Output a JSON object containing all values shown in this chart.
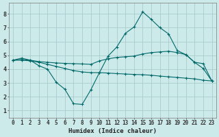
{
  "xlabel": "Humidex (Indice chaleur)",
  "background_color": "#cceaea",
  "grid_color": "#aacccc",
  "line_color": "#006868",
  "xlim": [
    -0.5,
    23.5
  ],
  "ylim": [
    0.5,
    8.8
  ],
  "xticks": [
    0,
    1,
    2,
    3,
    4,
    5,
    6,
    7,
    8,
    9,
    10,
    11,
    12,
    13,
    14,
    15,
    16,
    17,
    18,
    19,
    20,
    21,
    22,
    23
  ],
  "yticks": [
    1,
    2,
    3,
    4,
    5,
    6,
    7,
    8
  ],
  "line1_x": [
    0,
    1,
    2,
    3,
    4,
    5,
    6,
    7,
    8,
    9,
    10,
    11,
    12,
    13,
    14,
    15,
    16,
    17,
    18,
    19,
    20,
    21,
    22,
    23
  ],
  "line1_y": [
    4.65,
    4.8,
    4.65,
    4.25,
    4.0,
    3.05,
    2.55,
    1.5,
    1.45,
    2.5,
    3.75,
    4.95,
    5.6,
    6.6,
    7.05,
    8.15,
    7.6,
    7.0,
    6.55,
    5.35,
    5.05,
    4.5,
    4.05,
    3.15
  ],
  "line2_x": [
    0,
    1,
    2,
    3,
    4,
    5,
    6,
    7,
    8,
    9,
    10,
    11,
    12,
    13,
    14,
    15,
    16,
    17,
    18,
    19,
    20,
    21,
    22,
    23
  ],
  "line2_y": [
    4.65,
    4.7,
    4.65,
    4.55,
    4.5,
    4.45,
    4.42,
    4.4,
    4.38,
    4.35,
    4.6,
    4.75,
    4.85,
    4.9,
    4.95,
    5.1,
    5.2,
    5.25,
    5.3,
    5.2,
    5.05,
    4.5,
    4.4,
    3.15
  ],
  "line3_x": [
    0,
    1,
    2,
    3,
    4,
    5,
    6,
    7,
    8,
    9,
    10,
    11,
    12,
    13,
    14,
    15,
    16,
    17,
    18,
    19,
    20,
    21,
    22,
    23
  ],
  "line3_y": [
    4.65,
    4.65,
    4.6,
    4.5,
    4.35,
    4.2,
    4.05,
    3.9,
    3.8,
    3.75,
    3.75,
    3.72,
    3.68,
    3.65,
    3.62,
    3.6,
    3.56,
    3.5,
    3.45,
    3.4,
    3.35,
    3.3,
    3.2,
    3.15
  ],
  "tick_fontsize": 5.5,
  "xlabel_fontsize": 6.5
}
